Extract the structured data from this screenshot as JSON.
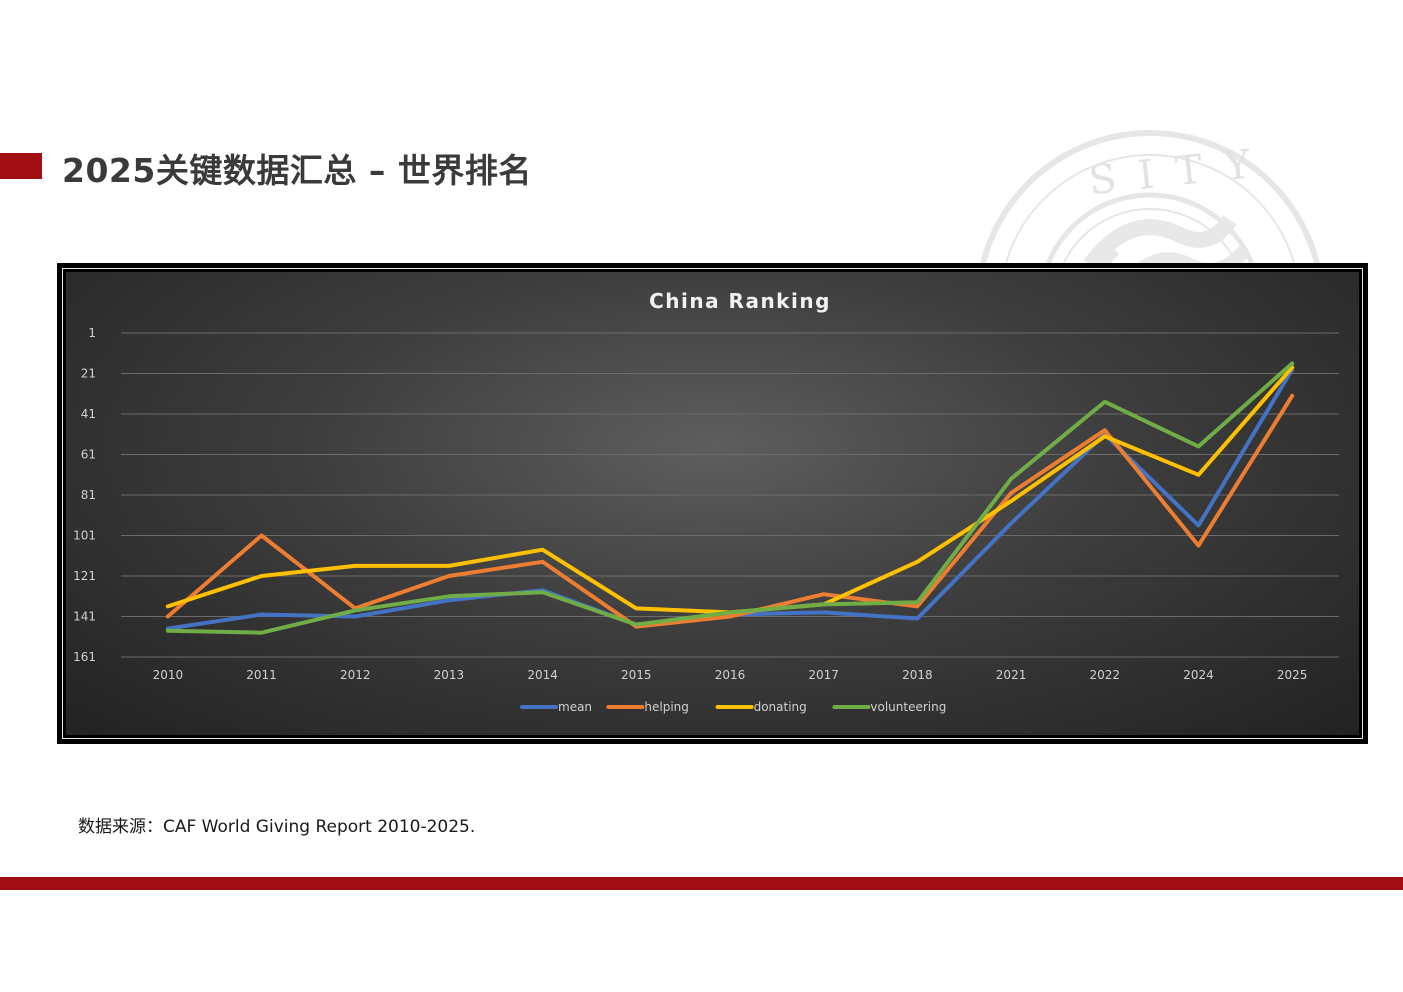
{
  "page": {
    "title": "2025关键数据汇总 – 世界排名",
    "source_note": "数据来源：CAF World Giving Report 2010-2025.",
    "accent_color": "#a10f14"
  },
  "seal": {
    "visible_text": "SITY"
  },
  "chart_data": {
    "type": "line",
    "title": "China Ranking",
    "xlabel": "",
    "ylabel": "",
    "categories": [
      "2010",
      "2011",
      "2012",
      "2013",
      "2014",
      "2015",
      "2016",
      "2017",
      "2018",
      "2021",
      "2022",
      "2024",
      "2025"
    ],
    "y_axis": {
      "reversed": true,
      "min": 1,
      "max": 161,
      "ticks": [
        1,
        21,
        41,
        61,
        81,
        101,
        121,
        141,
        161
      ]
    },
    "grid": true,
    "legend_position": "bottom",
    "series": [
      {
        "name": "mean",
        "color": "#4472c4",
        "values": [
          147,
          140,
          141,
          133,
          128,
          145,
          140,
          139,
          142,
          95,
          51,
          96,
          19
        ]
      },
      {
        "name": "helping",
        "color": "#ed7d31",
        "values": [
          141,
          101,
          137,
          121,
          114,
          146,
          141,
          130,
          136,
          80,
          49,
          106,
          32
        ]
      },
      {
        "name": "donating",
        "color": "#ffc000",
        "values": [
          136,
          121,
          116,
          116,
          108,
          137,
          139,
          135,
          114,
          84,
          52,
          71,
          18
        ]
      },
      {
        "name": "volunteering",
        "color": "#70ad47",
        "values": [
          148,
          149,
          138,
          131,
          129,
          145,
          139,
          135,
          134,
          73,
          35,
          57,
          16
        ]
      }
    ]
  }
}
